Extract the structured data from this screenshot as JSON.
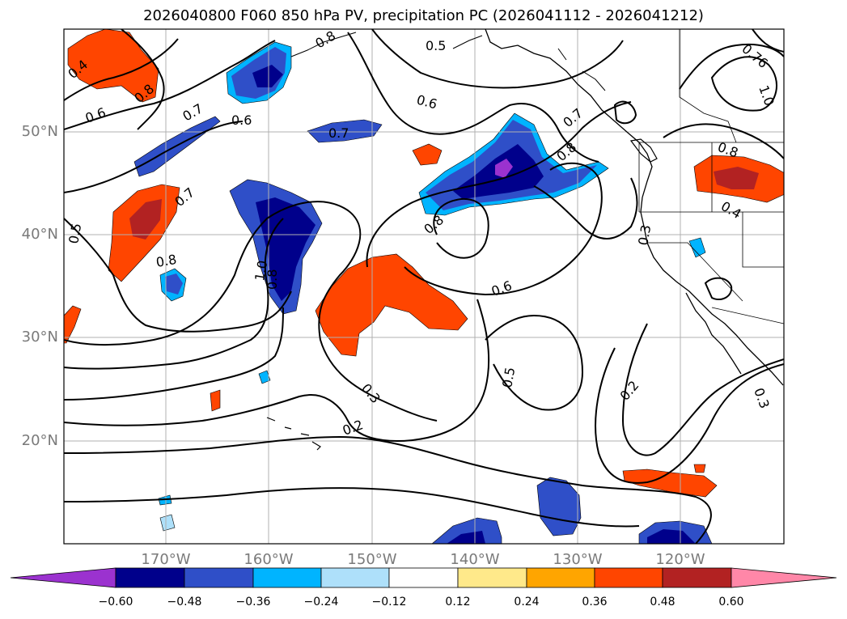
{
  "title": "2026040800 F060 850 hPa PV, precipitation PC (2026041112 - 2026041212)",
  "lat_ticks": [
    "50°N",
    "40°N",
    "30°N",
    "20°N"
  ],
  "lon_ticks": [
    "170°W",
    "160°W",
    "150°W",
    "140°W",
    "130°W",
    "120°W"
  ],
  "colorbar": {
    "labels": [
      "−0.60",
      "−0.48",
      "−0.36",
      "−0.24",
      "−0.12",
      "0.12",
      "0.24",
      "0.36",
      "0.48",
      "0.60"
    ],
    "colors": [
      "#9b32cf",
      "#00008b",
      "#2f4fc8",
      "#00b4ff",
      "#aee0fa",
      "#ffffff",
      "#ffe98a",
      "#ffa500",
      "#ff4500",
      "#b22222",
      "#ff87a8"
    ]
  },
  "contour_labels": [
    "0.4",
    "0.6",
    "0.8",
    "0.7",
    "0.6",
    "0.8",
    "0.5",
    "0.6",
    "0.7",
    "0.76",
    "1.0",
    "0.7",
    "0.8",
    "0.7",
    "0.5",
    "0.8",
    "0.8",
    "0.8",
    "0.3",
    "0.6",
    "0.3",
    "0.2",
    "0.5",
    "0.2",
    "0.3",
    "0.8",
    "0.4",
    "1.0"
  ]
}
